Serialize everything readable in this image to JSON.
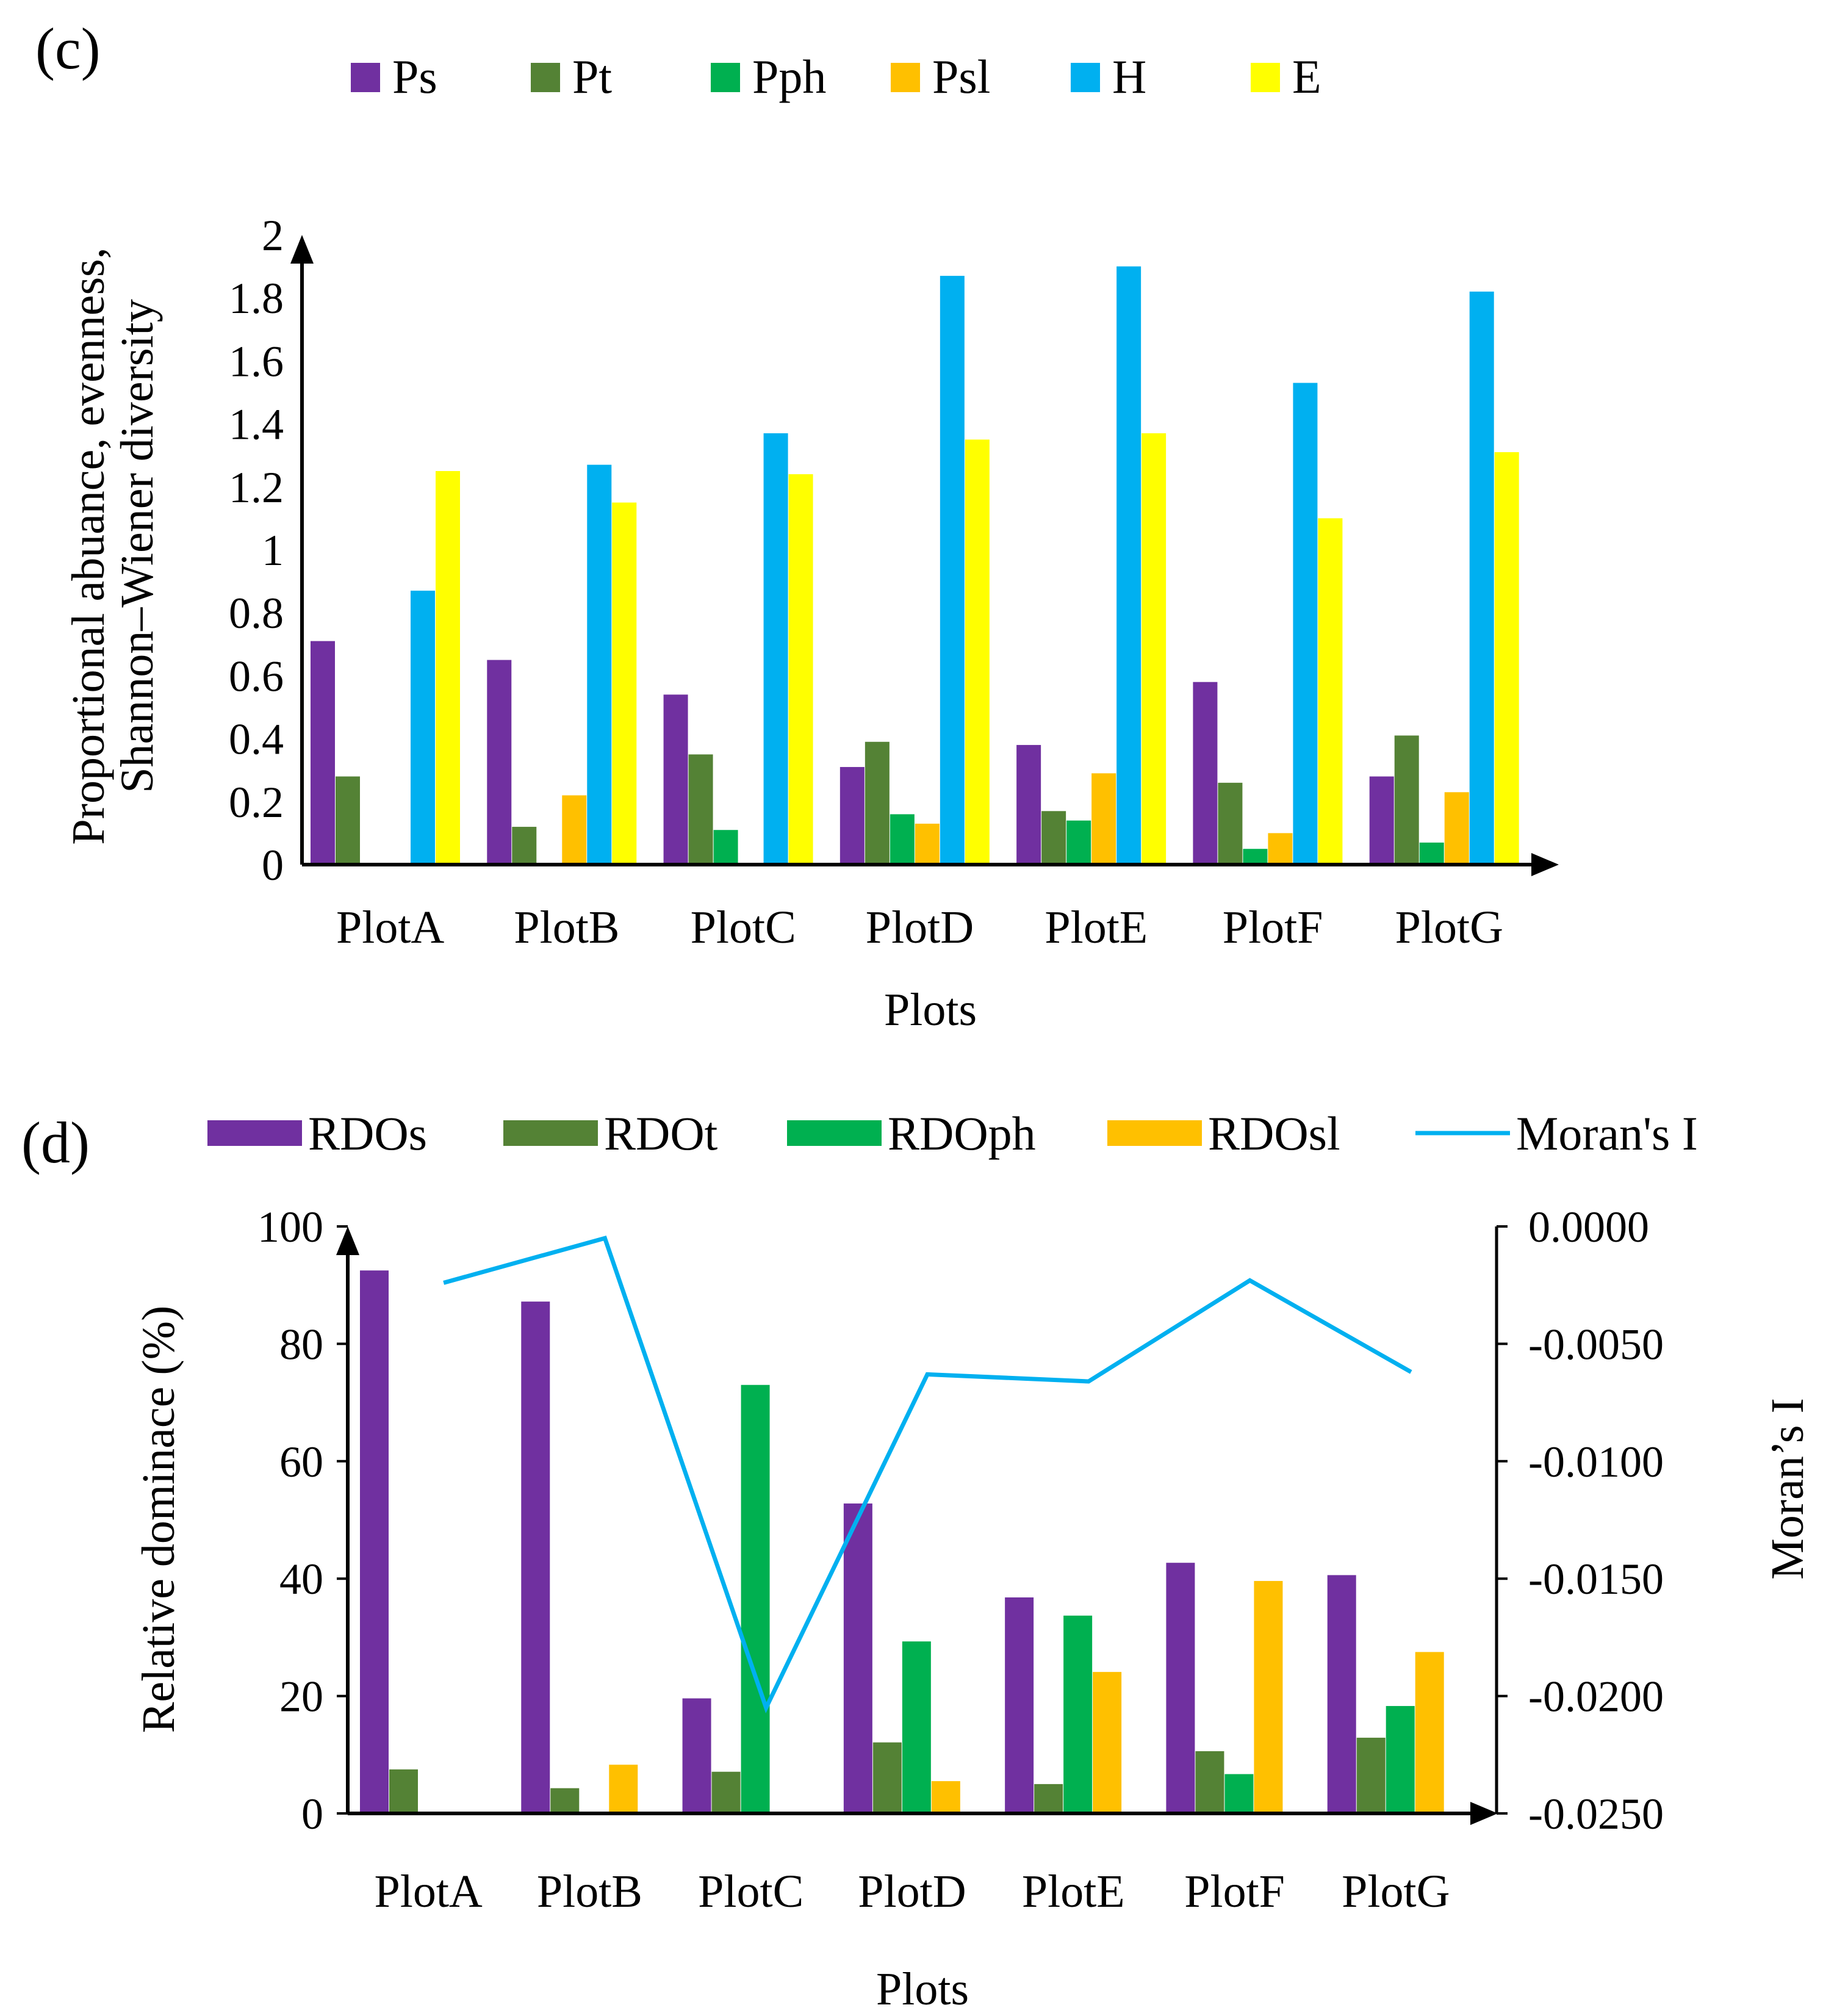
{
  "chart_data": [
    {
      "panel_label": "(c)",
      "type": "bar",
      "categories": [
        "PlotA",
        "PlotB",
        "PlotC",
        "PlotD",
        "PlotE",
        "PlotF",
        "PlotG"
      ],
      "series": [
        {
          "name": "Ps",
          "color": "#7030A0",
          "values": [
            0.71,
            0.65,
            0.54,
            0.31,
            0.38,
            0.58,
            0.28
          ]
        },
        {
          "name": "Pt",
          "color": "#548235",
          "values": [
            0.28,
            0.12,
            0.35,
            0.39,
            0.17,
            0.26,
            0.41
          ]
        },
        {
          "name": "Pph",
          "color": "#00B050",
          "values": [
            0,
            0,
            0.11,
            0.16,
            0.14,
            0.05,
            0.07
          ]
        },
        {
          "name": "Psl",
          "color": "#FFC000",
          "values": [
            0,
            0.22,
            0,
            0.13,
            0.29,
            0.1,
            0.23
          ]
        },
        {
          "name": "H",
          "color": "#00B0F0",
          "values": [
            0.87,
            1.27,
            1.37,
            1.87,
            1.9,
            1.53,
            1.82
          ]
        },
        {
          "name": "E",
          "color": "#FFFF00",
          "values": [
            1.25,
            1.15,
            1.24,
            1.35,
            1.37,
            1.1,
            1.31
          ]
        }
      ],
      "yticks": [
        "0",
        "0.2",
        "0.4",
        "0.6",
        "0.8",
        "1",
        "1.2",
        "1.4",
        "1.6",
        "1.8",
        "2"
      ],
      "ylim": [
        0,
        2
      ],
      "ylabel_line1": "Proportional abuance, evenness,",
      "ylabel_line2": "Shannon–Wiener diversity",
      "xlabel": "Plots",
      "legend_position": "top"
    },
    {
      "panel_label": "(d)",
      "type": "bar+line",
      "categories": [
        "PlotA",
        "PlotB",
        "PlotC",
        "PlotD",
        "PlotE",
        "PlotF",
        "PlotG"
      ],
      "series": [
        {
          "name": "RDOs",
          "color": "#7030A0",
          "values": [
            92.5,
            87.2,
            19.6,
            52.8,
            36.8,
            42.7,
            40.6
          ]
        },
        {
          "name": "RDOt",
          "color": "#548235",
          "values": [
            7.5,
            4.3,
            7.1,
            12.1,
            5.0,
            10.6,
            12.9
          ]
        },
        {
          "name": "RDOph",
          "color": "#00B050",
          "values": [
            0,
            0,
            73.0,
            29.3,
            33.7,
            6.7,
            18.3
          ]
        },
        {
          "name": "RDOsl",
          "color": "#FFC000",
          "values": [
            0,
            8.3,
            0,
            5.5,
            24.1,
            39.6,
            27.5
          ]
        }
      ],
      "line_series": {
        "name": "Moran's I",
        "color": "#00B0F0",
        "values": [
          -0.0024,
          -0.0005,
          -0.0205,
          -0.0063,
          -0.0066,
          -0.0023,
          -0.0062
        ]
      },
      "yticks_left": [
        "0",
        "20",
        "40",
        "60",
        "80",
        "100"
      ],
      "ylim_left": [
        0,
        100
      ],
      "yticks_right": [
        "0.0000",
        "-0.0050",
        "-0.0100",
        "-0.0150",
        "-0.0200",
        "-0.0250"
      ],
      "ylim_right": [
        -0.025,
        0
      ],
      "ylabel_left": "Relative dominace (%)",
      "ylabel_right": "Moran’s I",
      "xlabel": "Plots",
      "legend_position": "top"
    }
  ]
}
